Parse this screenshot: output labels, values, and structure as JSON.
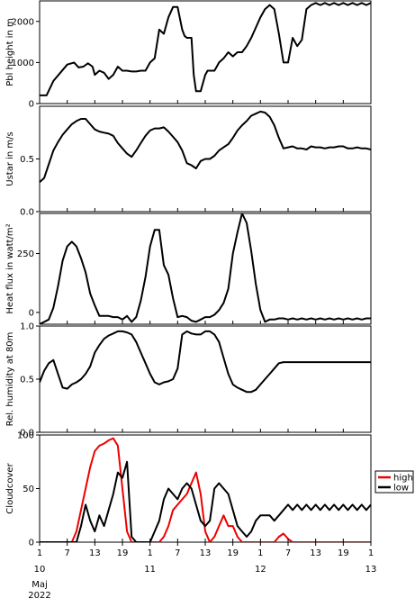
{
  "chart_data": [
    {
      "type": "line",
      "ylabel": "Pbl height in m",
      "ylim": [
        0,
        2500
      ],
      "yticks": [
        0,
        1000,
        2000
      ],
      "xlim": [
        0,
        72
      ],
      "grid": false,
      "series": [
        {
          "color": "#000000",
          "x": [
            0,
            1.5,
            3,
            4.5,
            6,
            7.5,
            8.5,
            9.5,
            10.5,
            11.5,
            12,
            13,
            14,
            15,
            16,
            17,
            18,
            19,
            20,
            21,
            22,
            23,
            24,
            25,
            26,
            27,
            28,
            29,
            30,
            31,
            31.5,
            32,
            33,
            33.5,
            34,
            35,
            36,
            36.5,
            37,
            38,
            38.5,
            39,
            40,
            41,
            42,
            43,
            44,
            45,
            46,
            47,
            48,
            49,
            50,
            51,
            52,
            53,
            54,
            55,
            56,
            57,
            58,
            59,
            60,
            61,
            62,
            63,
            64,
            65,
            66,
            67,
            68,
            69,
            70,
            71,
            72
          ],
          "y": [
            200,
            200,
            550,
            750,
            950,
            1000,
            880,
            900,
            980,
            900,
            700,
            800,
            750,
            600,
            700,
            900,
            800,
            800,
            780,
            780,
            800,
            800,
            1000,
            1100,
            1800,
            1700,
            2100,
            2350,
            2350,
            1800,
            1650,
            1600,
            1600,
            700,
            300,
            300,
            700,
            800,
            800,
            800,
            900,
            1000,
            1100,
            1250,
            1150,
            1250,
            1250,
            1400,
            1600,
            1850,
            2100,
            2300,
            2400,
            2300,
            1700,
            1000,
            1000,
            1600,
            1400,
            1550,
            2300,
            2400,
            2450,
            2400,
            2450,
            2400,
            2450,
            2400,
            2450,
            2400,
            2450,
            2400,
            2450,
            2400,
            2450
          ]
        }
      ]
    },
    {
      "type": "line",
      "ylabel": "Ustar in m/s",
      "ylim": [
        0,
        1.0
      ],
      "yticks": [
        0,
        0.5
      ],
      "xlim": [
        0,
        72
      ],
      "grid": false,
      "series": [
        {
          "color": "#000000",
          "x": [
            0,
            1,
            2,
            3,
            4,
            5,
            6,
            7,
            8,
            9,
            10,
            11,
            12,
            13,
            14,
            15,
            16,
            17,
            18,
            19,
            20,
            21,
            22,
            23,
            24,
            25,
            26,
            27,
            28,
            29,
            30,
            31,
            32,
            33,
            34,
            35,
            36,
            37,
            38,
            39,
            40,
            41,
            42,
            43,
            44,
            45,
            46,
            47,
            48,
            49,
            50,
            51,
            52,
            53,
            54,
            55,
            56,
            57,
            58,
            59,
            60,
            61,
            62,
            63,
            64,
            65,
            66,
            67,
            68,
            69,
            70,
            71,
            72
          ],
          "y": [
            0.28,
            0.32,
            0.45,
            0.58,
            0.66,
            0.73,
            0.78,
            0.83,
            0.86,
            0.88,
            0.88,
            0.83,
            0.78,
            0.76,
            0.75,
            0.74,
            0.72,
            0.65,
            0.6,
            0.55,
            0.52,
            0.58,
            0.65,
            0.72,
            0.77,
            0.79,
            0.79,
            0.8,
            0.76,
            0.71,
            0.66,
            0.58,
            0.46,
            0.44,
            0.41,
            0.48,
            0.5,
            0.5,
            0.53,
            0.58,
            0.61,
            0.64,
            0.7,
            0.77,
            0.82,
            0.86,
            0.91,
            0.93,
            0.95,
            0.94,
            0.9,
            0.82,
            0.7,
            0.6,
            0.61,
            0.62,
            0.6,
            0.6,
            0.59,
            0.62,
            0.61,
            0.61,
            0.6,
            0.61,
            0.61,
            0.62,
            0.62,
            0.6,
            0.6,
            0.61,
            0.6,
            0.6,
            0.59
          ]
        }
      ]
    },
    {
      "type": "line",
      "ylabel": "Heat flux in watt/m²",
      "ylim": [
        -50,
        420
      ],
      "yticks": [
        0,
        250
      ],
      "xlim": [
        0,
        72
      ],
      "grid": false,
      "series": [
        {
          "color": "#000000",
          "x": [
            0,
            2,
            3,
            4,
            5,
            6,
            7,
            8,
            9,
            10,
            11,
            12,
            13,
            14,
            15,
            16,
            17,
            18,
            19,
            20,
            21,
            22,
            23,
            24,
            25,
            26,
            27,
            28,
            29,
            30,
            31,
            32,
            33,
            34,
            35,
            36,
            37,
            38,
            39,
            40,
            41,
            42,
            43,
            44,
            45,
            46,
            47,
            48,
            49,
            50,
            51,
            52,
            53,
            54,
            55,
            56,
            57,
            58,
            59,
            60,
            61,
            62,
            63,
            64,
            65,
            66,
            67,
            68,
            69,
            70,
            71,
            72
          ],
          "y": [
            -50,
            -30,
            20,
            110,
            220,
            280,
            300,
            280,
            230,
            170,
            80,
            30,
            -15,
            -15,
            -15,
            -20,
            -20,
            -30,
            -15,
            -40,
            -20,
            50,
            150,
            280,
            350,
            350,
            200,
            160,
            60,
            -20,
            -15,
            -20,
            -35,
            -40,
            -30,
            -20,
            -20,
            -10,
            10,
            40,
            100,
            250,
            340,
            420,
            380,
            260,
            120,
            10,
            -40,
            -30,
            -30,
            -25,
            -25,
            -30,
            -25,
            -30,
            -25,
            -30,
            -25,
            -30,
            -25,
            -30,
            -25,
            -30,
            -25,
            -30,
            -25,
            -30,
            -25,
            -30,
            -25,
            -25
          ]
        }
      ]
    },
    {
      "type": "line",
      "ylabel": "Rel. humidity at 80m",
      "ylim": [
        0,
        1.0
      ],
      "yticks": [
        0,
        0.5,
        1.0
      ],
      "xlim": [
        0,
        72
      ],
      "grid": false,
      "series": [
        {
          "color": "#000000",
          "x": [
            0,
            1,
            2,
            3,
            4,
            5,
            6,
            7,
            8,
            9,
            10,
            11,
            12,
            13,
            14,
            15,
            16,
            17,
            18,
            19,
            20,
            21,
            22,
            23,
            24,
            25,
            26,
            27,
            28,
            29,
            30,
            31,
            32,
            33,
            34,
            35,
            36,
            37,
            38,
            39,
            40,
            41,
            42,
            43,
            44,
            45,
            46,
            47,
            48,
            49,
            50,
            51,
            52,
            53,
            54,
            55,
            56,
            57,
            58,
            59,
            60,
            61,
            62,
            63,
            64,
            65,
            66,
            67,
            68,
            69,
            70,
            71,
            72
          ],
          "y": [
            0.47,
            0.58,
            0.65,
            0.68,
            0.55,
            0.42,
            0.41,
            0.45,
            0.47,
            0.5,
            0.55,
            0.62,
            0.75,
            0.82,
            0.88,
            0.91,
            0.93,
            0.95,
            0.95,
            0.94,
            0.92,
            0.85,
            0.75,
            0.65,
            0.55,
            0.47,
            0.45,
            0.47,
            0.48,
            0.5,
            0.6,
            0.92,
            0.95,
            0.93,
            0.92,
            0.92,
            0.95,
            0.95,
            0.92,
            0.85,
            0.7,
            0.55,
            0.45,
            0.42,
            0.4,
            0.38,
            0.38,
            0.4,
            0.45,
            0.5,
            0.55,
            0.6,
            0.65,
            0.66,
            0.66,
            0.66,
            0.66,
            0.66,
            0.66,
            0.66,
            0.66,
            0.66,
            0.66,
            0.66,
            0.66,
            0.66,
            0.66,
            0.66,
            0.66,
            0.66,
            0.66,
            0.66,
            0.66
          ]
        }
      ]
    },
    {
      "type": "line",
      "ylabel": "Cloudcover",
      "ylim": [
        0,
        100
      ],
      "yticks": [
        0,
        50,
        100
      ],
      "xlim": [
        0,
        72
      ],
      "grid": false,
      "x_tick_labels": [
        "1",
        "7",
        "13",
        "19",
        "1",
        "7",
        "13",
        "19",
        "1",
        "7",
        "13",
        "19",
        "1",
        "7",
        "13",
        "19",
        "1",
        "7",
        "13",
        "19",
        "1",
        "7",
        "13",
        "19",
        "1"
      ],
      "legend_position": "right",
      "series": [
        {
          "name": "high",
          "color": "#ee0000",
          "x": [
            0,
            7,
            8,
            9,
            10,
            11,
            12,
            13,
            14,
            15,
            16,
            17,
            18,
            19,
            20,
            21,
            22,
            23,
            24,
            25,
            26,
            27,
            28,
            29,
            30,
            31,
            32,
            33,
            34,
            35,
            36,
            37,
            38,
            39,
            40,
            41,
            42,
            43,
            44,
            45,
            46,
            47,
            48,
            49,
            50,
            51,
            52,
            53,
            54,
            55,
            56,
            57,
            58,
            59,
            60,
            61,
            62,
            63,
            64,
            65,
            66,
            67,
            68,
            69,
            70,
            71,
            72
          ],
          "y": [
            0,
            0,
            10,
            30,
            50,
            70,
            85,
            90,
            92,
            95,
            97,
            90,
            50,
            10,
            0,
            0,
            0,
            0,
            0,
            0,
            0,
            5,
            15,
            30,
            35,
            40,
            45,
            55,
            65,
            45,
            10,
            0,
            5,
            15,
            25,
            15,
            15,
            5,
            0,
            0,
            0,
            0,
            0,
            0,
            0,
            0,
            5,
            8,
            3,
            0,
            0,
            0,
            0,
            0,
            0,
            0,
            0,
            0,
            0,
            0,
            0,
            0,
            0,
            0,
            0,
            0,
            0
          ]
        },
        {
          "name": "low",
          "color": "#000000",
          "x": [
            0,
            8,
            9,
            10,
            11,
            12,
            13,
            14,
            15,
            16,
            17,
            18,
            19,
            20,
            21,
            22,
            23,
            24,
            25,
            26,
            27,
            28,
            29,
            30,
            31,
            32,
            33,
            34,
            35,
            36,
            37,
            38,
            39,
            40,
            41,
            42,
            43,
            44,
            45,
            46,
            47,
            48,
            49,
            50,
            51,
            52,
            53,
            54,
            55,
            56,
            57,
            58,
            59,
            60,
            61,
            62,
            63,
            64,
            65,
            66,
            67,
            68,
            69,
            70,
            71,
            72
          ],
          "y": [
            0,
            0,
            15,
            35,
            20,
            10,
            25,
            15,
            30,
            45,
            65,
            60,
            75,
            5,
            0,
            0,
            0,
            0,
            10,
            20,
            40,
            50,
            45,
            40,
            50,
            55,
            50,
            35,
            20,
            15,
            20,
            50,
            55,
            50,
            45,
            30,
            15,
            10,
            5,
            10,
            20,
            25,
            25,
            25,
            20,
            25,
            30,
            35,
            30,
            35,
            30,
            35,
            30,
            35,
            30,
            35,
            30,
            35,
            30,
            35,
            30,
            35,
            30,
            35,
            30,
            35
          ]
        }
      ]
    }
  ],
  "legend": [
    {
      "label": "high",
      "color": "#ee0000"
    },
    {
      "label": "low",
      "color": "#000000"
    }
  ],
  "x_axis": {
    "tick_labels": [
      "1",
      "7",
      "13",
      "19",
      "1",
      "7",
      "13",
      "19",
      "1",
      "7",
      "13",
      "19",
      "1",
      "7",
      "13"
    ],
    "day_labels": [
      "10",
      "11",
      "12",
      "13"
    ],
    "month_label": "Maj",
    "year_label": "2022"
  }
}
